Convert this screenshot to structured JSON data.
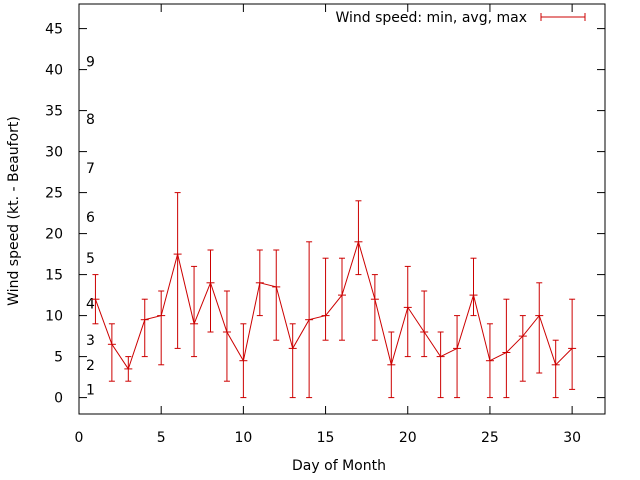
{
  "chart_data": {
    "type": "line",
    "title": "",
    "xlabel": "Day of Month",
    "ylabel": "Wind speed (kt. - Beaufort)",
    "xlim": [
      0,
      32
    ],
    "ylim": [
      -2,
      48
    ],
    "x_ticks": [
      {
        "value": 0,
        "label": "0"
      },
      {
        "value": 5,
        "label": "5"
      },
      {
        "value": 10,
        "label": "10"
      },
      {
        "value": 15,
        "label": "15"
      },
      {
        "value": 20,
        "label": "20"
      },
      {
        "value": 25,
        "label": "25"
      },
      {
        "value": 30,
        "label": "30"
      }
    ],
    "y_ticks": [
      {
        "value": 0,
        "label": "0"
      },
      {
        "value": 5,
        "label": "5"
      },
      {
        "value": 10,
        "label": "10"
      },
      {
        "value": 15,
        "label": "15"
      },
      {
        "value": 20,
        "label": "20"
      },
      {
        "value": 25,
        "label": "25"
      },
      {
        "value": 30,
        "label": "30"
      },
      {
        "value": 35,
        "label": "35"
      },
      {
        "value": 40,
        "label": "40"
      },
      {
        "value": 45,
        "label": "45"
      }
    ],
    "beaufort_labels": [
      {
        "value": 1,
        "label": "1"
      },
      {
        "value": 4,
        "label": "2"
      },
      {
        "value": 7,
        "label": "3"
      },
      {
        "value": 11.5,
        "label": "4"
      },
      {
        "value": 17,
        "label": "5"
      },
      {
        "value": 22,
        "label": "6"
      },
      {
        "value": 28,
        "label": "7"
      },
      {
        "value": 34,
        "label": "8"
      },
      {
        "value": 41,
        "label": "9"
      }
    ],
    "legend": {
      "label": "Wind speed: min, avg, max",
      "position": "top-right"
    },
    "color": "#cc0000",
    "series": [
      {
        "name": "Wind speed: min, avg, max",
        "points": [
          {
            "x": 1,
            "avg": 12,
            "min": 9,
            "max": 15
          },
          {
            "x": 2,
            "avg": 6.5,
            "min": 2,
            "max": 9
          },
          {
            "x": 3,
            "avg": 3.5,
            "min": 2,
            "max": 5
          },
          {
            "x": 4,
            "avg": 9.5,
            "min": 5,
            "max": 12
          },
          {
            "x": 5,
            "avg": 10,
            "min": 4,
            "max": 13
          },
          {
            "x": 6,
            "avg": 17.5,
            "min": 6,
            "max": 25
          },
          {
            "x": 7,
            "avg": 9,
            "min": 5,
            "max": 16
          },
          {
            "x": 8,
            "avg": 14,
            "min": 8,
            "max": 18
          },
          {
            "x": 9,
            "avg": 8,
            "min": 2,
            "max": 13
          },
          {
            "x": 10,
            "avg": 4.5,
            "min": 0,
            "max": 9
          },
          {
            "x": 11,
            "avg": 14,
            "min": 10,
            "max": 18
          },
          {
            "x": 12,
            "avg": 13.5,
            "min": 7,
            "max": 18
          },
          {
            "x": 13,
            "avg": 6,
            "min": 0,
            "max": 9
          },
          {
            "x": 14,
            "avg": 9.5,
            "min": 0,
            "max": 19
          },
          {
            "x": 15,
            "avg": 10,
            "min": 7,
            "max": 17
          },
          {
            "x": 16,
            "avg": 12.5,
            "min": 7,
            "max": 17
          },
          {
            "x": 17,
            "avg": 19,
            "min": 15,
            "max": 24
          },
          {
            "x": 18,
            "avg": 12,
            "min": 7,
            "max": 15
          },
          {
            "x": 19,
            "avg": 4,
            "min": 0,
            "max": 8
          },
          {
            "x": 20,
            "avg": 11,
            "min": 5,
            "max": 16
          },
          {
            "x": 21,
            "avg": 8,
            "min": 5,
            "max": 13
          },
          {
            "x": 22,
            "avg": 5,
            "min": 0,
            "max": 8
          },
          {
            "x": 23,
            "avg": 6,
            "min": 0,
            "max": 10
          },
          {
            "x": 24,
            "avg": 12.5,
            "min": 10,
            "max": 17
          },
          {
            "x": 25,
            "avg": 4.5,
            "min": 0,
            "max": 9
          },
          {
            "x": 26,
            "avg": 5.5,
            "min": 0,
            "max": 12
          },
          {
            "x": 27,
            "avg": 7.5,
            "min": 2,
            "max": 10
          },
          {
            "x": 28,
            "avg": 10,
            "min": 3,
            "max": 14
          },
          {
            "x": 29,
            "avg": 4,
            "min": 0,
            "max": 7
          },
          {
            "x": 30,
            "avg": 6,
            "min": 1,
            "max": 12
          }
        ]
      }
    ]
  }
}
